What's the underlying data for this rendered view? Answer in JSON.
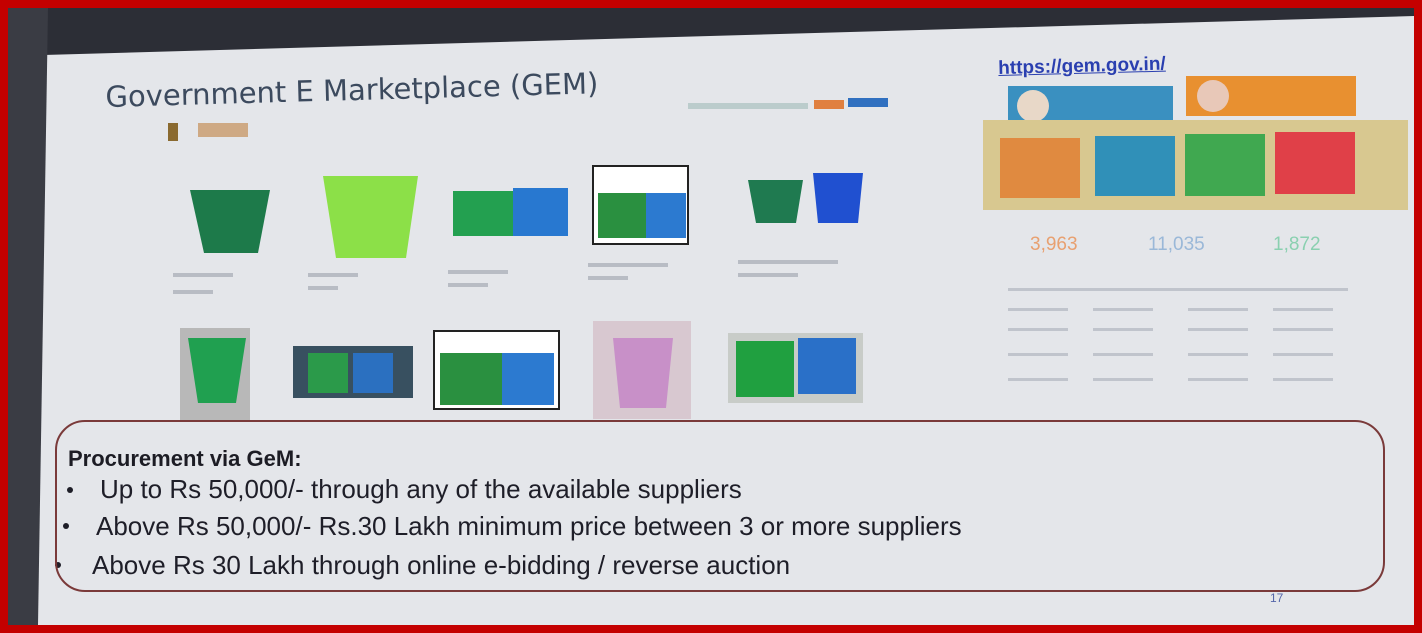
{
  "slide": {
    "title": "Government E Marketplace (GEM)",
    "url": "https://gem.gov.in/",
    "stats": [
      "3,963",
      "11,035",
      "1,872"
    ],
    "procurement": {
      "heading": "Procurement via GeM:",
      "bullets": [
        "Up to Rs 50,000/- through any of the available suppliers",
        "Above Rs 50,000/- Rs.30 Lakh minimum price between 3 or more suppliers",
        "Above Rs 30 Lakh through online e-bidding / reverse auction"
      ]
    },
    "page_number": "17"
  }
}
